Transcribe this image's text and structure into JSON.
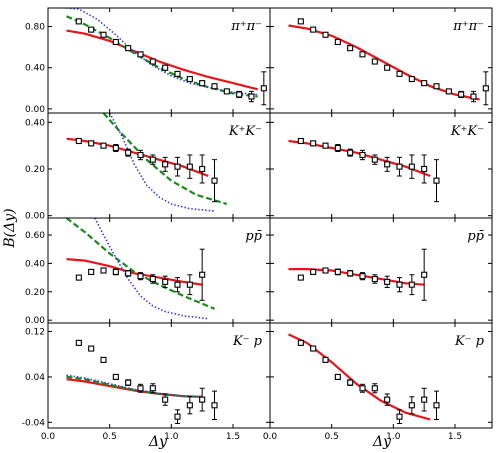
{
  "figure": {
    "xlabel": "Δy",
    "ylabel": "B(Δy)",
    "xlim": [
      0.0,
      1.8
    ],
    "xticks": [
      "0.0",
      "0.5",
      "1.0",
      "1.5"
    ],
    "xtick_values": [
      0.0,
      0.5,
      1.0,
      1.5
    ],
    "colors": {
      "model_red": "#e8141c",
      "model_green": "#1a8a1a",
      "model_blue": "#3a3ad8",
      "data": "#000000"
    }
  },
  "chart_data": [
    {
      "type": "scatter",
      "label": "π⁺π⁻",
      "row": 0,
      "col": 0,
      "ylim": [
        -0.04,
        0.98
      ],
      "yticks": [
        0.0,
        0.4,
        0.8
      ],
      "ytick_labels": [
        "0.00",
        "0.40",
        "0.80"
      ],
      "data": {
        "x": [
          0.25,
          0.35,
          0.45,
          0.55,
          0.65,
          0.75,
          0.85,
          0.95,
          1.05,
          1.15,
          1.25,
          1.35,
          1.45,
          1.55,
          1.65,
          1.75
        ],
        "y": [
          0.85,
          0.77,
          0.72,
          0.65,
          0.59,
          0.53,
          0.46,
          0.4,
          0.34,
          0.29,
          0.25,
          0.22,
          0.17,
          0.14,
          0.12,
          0.2
        ],
        "err": [
          0.02,
          0.02,
          0.02,
          0.02,
          0.02,
          0.02,
          0.02,
          0.02,
          0.02,
          0.02,
          0.02,
          0.02,
          0.02,
          0.03,
          0.05,
          0.16
        ]
      },
      "series": [
        {
          "style": "solid",
          "color": "#e8141c",
          "x": [
            0.15,
            0.3,
            0.5,
            0.7,
            0.9,
            1.1,
            1.3,
            1.5,
            1.7
          ],
          "y": [
            0.76,
            0.73,
            0.66,
            0.56,
            0.46,
            0.38,
            0.31,
            0.25,
            0.19
          ]
        },
        {
          "style": "dashed",
          "color": "#1a8a1a",
          "x": [
            0.15,
            0.3,
            0.5,
            0.7,
            0.9,
            1.1,
            1.3,
            1.5,
            1.7
          ],
          "y": [
            0.9,
            0.82,
            0.69,
            0.54,
            0.4,
            0.29,
            0.21,
            0.15,
            0.12
          ]
        },
        {
          "style": "dotted",
          "color": "#3a3ad8",
          "x": [
            0.15,
            0.25,
            0.4,
            0.55,
            0.7,
            0.85,
            1.0,
            1.15,
            1.3,
            1.5,
            1.7
          ],
          "y": [
            0.98,
            0.97,
            0.87,
            0.72,
            0.55,
            0.42,
            0.32,
            0.25,
            0.21,
            0.16,
            0.14
          ]
        }
      ]
    },
    {
      "type": "scatter",
      "label": "π⁺π⁻",
      "row": 0,
      "col": 1,
      "ylim": [
        -0.04,
        0.98
      ],
      "yticks": [
        0.0,
        0.4,
        0.8
      ],
      "ytick_labels": [
        "",
        "",
        ""
      ],
      "data": {
        "x": [
          0.25,
          0.35,
          0.45,
          0.55,
          0.65,
          0.75,
          0.85,
          0.95,
          1.05,
          1.15,
          1.25,
          1.35,
          1.45,
          1.55,
          1.65,
          1.75
        ],
        "y": [
          0.85,
          0.77,
          0.72,
          0.65,
          0.59,
          0.53,
          0.46,
          0.4,
          0.34,
          0.29,
          0.25,
          0.22,
          0.17,
          0.14,
          0.12,
          0.2
        ],
        "err": [
          0.02,
          0.02,
          0.02,
          0.02,
          0.02,
          0.02,
          0.02,
          0.02,
          0.02,
          0.02,
          0.02,
          0.02,
          0.02,
          0.03,
          0.05,
          0.16
        ]
      },
      "series": [
        {
          "style": "solid",
          "color": "#e8141c",
          "x": [
            0.15,
            0.3,
            0.5,
            0.7,
            0.9,
            1.1,
            1.3,
            1.5,
            1.7
          ],
          "y": [
            0.81,
            0.78,
            0.71,
            0.6,
            0.47,
            0.34,
            0.22,
            0.14,
            0.09
          ]
        }
      ]
    },
    {
      "type": "scatter",
      "label": "K⁺K⁻",
      "row": 1,
      "col": 0,
      "ylim": [
        -0.01,
        0.44
      ],
      "yticks": [
        0.0,
        0.2,
        0.4
      ],
      "ytick_labels": [
        "0.00",
        "0.20",
        "0.40"
      ],
      "data": {
        "x": [
          0.25,
          0.35,
          0.45,
          0.55,
          0.65,
          0.75,
          0.85,
          0.95,
          1.05,
          1.15,
          1.25,
          1.35
        ],
        "y": [
          0.32,
          0.31,
          0.3,
          0.29,
          0.27,
          0.26,
          0.24,
          0.22,
          0.21,
          0.21,
          0.2,
          0.15
        ],
        "err": [
          0.01,
          0.01,
          0.01,
          0.015,
          0.015,
          0.02,
          0.02,
          0.03,
          0.04,
          0.05,
          0.06,
          0.09
        ]
      },
      "series": [
        {
          "style": "solid",
          "color": "#e8141c",
          "x": [
            0.15,
            0.3,
            0.5,
            0.7,
            0.9,
            1.1,
            1.3
          ],
          "y": [
            0.33,
            0.32,
            0.3,
            0.27,
            0.24,
            0.21,
            0.17
          ]
        },
        {
          "style": "dashed",
          "color": "#1a8a1a",
          "x": [
            0.45,
            0.6,
            0.8,
            1.0,
            1.2,
            1.45
          ],
          "y": [
            0.44,
            0.35,
            0.24,
            0.15,
            0.09,
            0.05
          ]
        },
        {
          "style": "dotted",
          "color": "#3a3ad8",
          "x": [
            0.5,
            0.6,
            0.7,
            0.8,
            0.9,
            1.0,
            1.15,
            1.35
          ],
          "y": [
            0.44,
            0.34,
            0.22,
            0.13,
            0.08,
            0.05,
            0.03,
            0.02
          ]
        }
      ]
    },
    {
      "type": "scatter",
      "label": "K⁺K⁻",
      "row": 1,
      "col": 1,
      "ylim": [
        -0.01,
        0.44
      ],
      "yticks": [
        0.0,
        0.2,
        0.4
      ],
      "ytick_labels": [
        "",
        "",
        ""
      ],
      "data": {
        "x": [
          0.25,
          0.35,
          0.45,
          0.55,
          0.65,
          0.75,
          0.85,
          0.95,
          1.05,
          1.15,
          1.25,
          1.35
        ],
        "y": [
          0.32,
          0.31,
          0.3,
          0.29,
          0.27,
          0.26,
          0.24,
          0.22,
          0.21,
          0.21,
          0.2,
          0.15
        ],
        "err": [
          0.01,
          0.01,
          0.01,
          0.015,
          0.015,
          0.02,
          0.02,
          0.03,
          0.04,
          0.05,
          0.06,
          0.09
        ]
      },
      "series": [
        {
          "style": "solid",
          "color": "#e8141c",
          "x": [
            0.15,
            0.3,
            0.5,
            0.7,
            0.9,
            1.1,
            1.3
          ],
          "y": [
            0.32,
            0.31,
            0.29,
            0.27,
            0.24,
            0.21,
            0.17
          ]
        }
      ]
    },
    {
      "type": "scatter",
      "label": "pp̄",
      "row": 2,
      "col": 0,
      "ylim": [
        -0.02,
        0.72
      ],
      "yticks": [
        0.0,
        0.2,
        0.4,
        0.6
      ],
      "ytick_labels": [
        "0.00",
        "0.20",
        "0.40",
        "0.60"
      ],
      "data": {
        "x": [
          0.25,
          0.35,
          0.45,
          0.55,
          0.65,
          0.75,
          0.85,
          0.95,
          1.05,
          1.15,
          1.25
        ],
        "y": [
          0.3,
          0.34,
          0.35,
          0.34,
          0.33,
          0.31,
          0.29,
          0.27,
          0.25,
          0.25,
          0.32
        ],
        "err": [
          0.01,
          0.01,
          0.015,
          0.02,
          0.02,
          0.025,
          0.03,
          0.04,
          0.05,
          0.07,
          0.18
        ]
      },
      "series": [
        {
          "style": "solid",
          "color": "#e8141c",
          "x": [
            0.15,
            0.3,
            0.5,
            0.7,
            0.9,
            1.1,
            1.25
          ],
          "y": [
            0.43,
            0.42,
            0.38,
            0.33,
            0.3,
            0.27,
            0.25
          ]
        },
        {
          "style": "dashed",
          "color": "#1a8a1a",
          "x": [
            0.15,
            0.3,
            0.5,
            0.7,
            0.9,
            1.1,
            1.35
          ],
          "y": [
            0.72,
            0.62,
            0.47,
            0.34,
            0.25,
            0.17,
            0.08
          ]
        },
        {
          "style": "dotted",
          "color": "#3a3ad8",
          "x": [
            0.38,
            0.45,
            0.55,
            0.65,
            0.75,
            0.85,
            0.95,
            1.1,
            1.3
          ],
          "y": [
            0.72,
            0.6,
            0.44,
            0.29,
            0.17,
            0.1,
            0.06,
            0.03,
            0.01
          ]
        }
      ]
    },
    {
      "type": "scatter",
      "label": "pp̄",
      "row": 2,
      "col": 1,
      "ylim": [
        -0.02,
        0.72
      ],
      "yticks": [
        0.0,
        0.2,
        0.4,
        0.6
      ],
      "ytick_labels": [
        "",
        "",
        "",
        ""
      ],
      "data": {
        "x": [
          0.25,
          0.35,
          0.45,
          0.55,
          0.65,
          0.75,
          0.85,
          0.95,
          1.05,
          1.15,
          1.25
        ],
        "y": [
          0.3,
          0.34,
          0.35,
          0.34,
          0.33,
          0.31,
          0.29,
          0.27,
          0.25,
          0.25,
          0.32
        ],
        "err": [
          0.01,
          0.01,
          0.015,
          0.02,
          0.02,
          0.025,
          0.03,
          0.04,
          0.05,
          0.07,
          0.18
        ]
      },
      "series": [
        {
          "style": "solid",
          "color": "#e8141c",
          "x": [
            0.15,
            0.3,
            0.5,
            0.7,
            0.9,
            1.1,
            1.25
          ],
          "y": [
            0.36,
            0.36,
            0.35,
            0.32,
            0.29,
            0.26,
            0.25
          ]
        }
      ]
    },
    {
      "type": "scatter",
      "label": "K⁻ p",
      "row": 3,
      "col": 0,
      "ylim": [
        -0.05,
        0.135
      ],
      "yticks": [
        -0.04,
        0.04,
        0.12
      ],
      "ytick_labels": [
        "-0.04",
        "0.04",
        "0.12"
      ],
      "data": {
        "x": [
          0.25,
          0.35,
          0.45,
          0.55,
          0.65,
          0.75,
          0.85,
          0.95,
          1.05,
          1.15,
          1.25,
          1.35
        ],
        "y": [
          0.1,
          0.09,
          0.07,
          0.04,
          0.03,
          0.02,
          0.02,
          0.0,
          -0.03,
          -0.01,
          0.0,
          -0.01
        ],
        "err": [
          0.003,
          0.003,
          0.004,
          0.004,
          0.005,
          0.007,
          0.008,
          0.01,
          0.012,
          0.015,
          0.02,
          0.025
        ]
      },
      "series": [
        {
          "style": "solid",
          "color": "#e8141c",
          "x": [
            0.15,
            0.3,
            0.5,
            0.7,
            0.9,
            1.1,
            1.25
          ],
          "y": [
            0.036,
            0.032,
            0.024,
            0.016,
            0.01,
            0.006,
            0.005
          ]
        },
        {
          "style": "dashed",
          "color": "#1a8a1a",
          "x": [
            0.15,
            0.3,
            0.5,
            0.7,
            0.9,
            1.1,
            1.25
          ],
          "y": [
            0.04,
            0.036,
            0.026,
            0.017,
            0.01,
            0.006,
            0.005
          ]
        },
        {
          "style": "dotted",
          "color": "#3a3ad8",
          "x": [
            0.15,
            0.3,
            0.5,
            0.7,
            0.9,
            1.1,
            1.25
          ],
          "y": [
            0.043,
            0.038,
            0.028,
            0.018,
            0.011,
            0.006,
            0.005
          ]
        }
      ]
    },
    {
      "type": "scatter",
      "label": "K⁻ p",
      "row": 3,
      "col": 1,
      "ylim": [
        -0.05,
        0.135
      ],
      "yticks": [
        -0.04,
        0.04,
        0.12
      ],
      "ytick_labels": [
        "",
        "",
        ""
      ],
      "data": {
        "x": [
          0.25,
          0.35,
          0.45,
          0.55,
          0.65,
          0.75,
          0.85,
          0.95,
          1.05,
          1.15,
          1.25,
          1.35
        ],
        "y": [
          0.1,
          0.09,
          0.07,
          0.04,
          0.03,
          0.02,
          0.02,
          0.0,
          -0.03,
          -0.01,
          0.0,
          -0.01
        ],
        "err": [
          0.003,
          0.003,
          0.004,
          0.004,
          0.005,
          0.007,
          0.008,
          0.01,
          0.012,
          0.015,
          0.02,
          0.025
        ]
      },
      "series": [
        {
          "style": "solid",
          "color": "#e8141c",
          "x": [
            0.15,
            0.3,
            0.5,
            0.7,
            0.9,
            1.1,
            1.3
          ],
          "y": [
            0.115,
            0.1,
            0.066,
            0.028,
            -0.002,
            -0.023,
            -0.035
          ]
        }
      ]
    }
  ]
}
